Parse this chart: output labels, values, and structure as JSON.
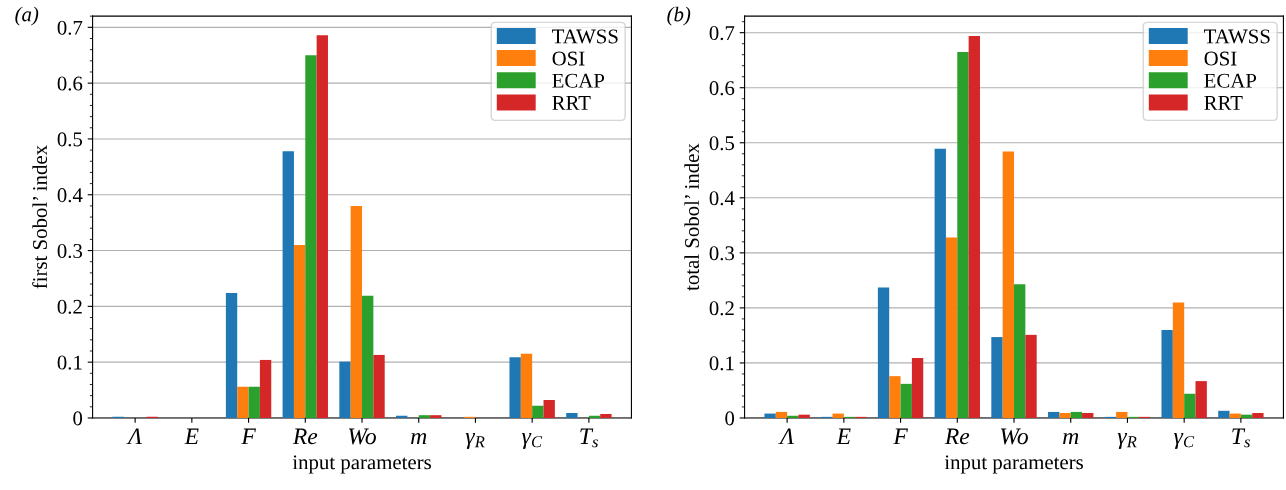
{
  "chart_data": [
    {
      "type": "bar",
      "title": "(a)",
      "xlabel": "input parameters",
      "ylabel": "first Sobol’ index",
      "categories": [
        "Λ",
        "E",
        "F",
        "Re",
        "Wo",
        "m",
        "γ$_{R}$",
        "γ$_{C}$",
        "T$_{s}$"
      ],
      "series": [
        {
          "name": "TAWSS",
          "color": "#1f77b4",
          "values": [
            0.002,
            0,
            0.224,
            0.478,
            0.101,
            0.004,
            0,
            0.109,
            0.009
          ]
        },
        {
          "name": "OSI",
          "color": "#ff7f0e",
          "values": [
            0,
            0,
            0.056,
            0.31,
            0.38,
            0,
            0.002,
            0.115,
            0
          ]
        },
        {
          "name": "ECAP",
          "color": "#2ca02c",
          "values": [
            0,
            0,
            0.056,
            0.65,
            0.219,
            0.005,
            0,
            0.022,
            0.004
          ]
        },
        {
          "name": "RRT",
          "color": "#d62728",
          "values": [
            0.002,
            0,
            0.104,
            0.686,
            0.113,
            0.005,
            0,
            0.032,
            0.007
          ]
        }
      ],
      "ylim": [
        0,
        0.72
      ],
      "yticks": [
        0,
        0.1,
        0.2,
        0.3,
        0.4,
        0.5,
        0.6,
        0.7
      ],
      "grid": "y",
      "legend": "top right"
    },
    {
      "type": "bar",
      "title": "(b)",
      "xlabel": "input parameters",
      "ylabel": "total Sobol’ index",
      "categories": [
        "Λ",
        "E",
        "F",
        "Re",
        "Wo",
        "m",
        "γ$_{R}$",
        "γ$_{C}$",
        "T$_{s}$"
      ],
      "series": [
        {
          "name": "TAWSS",
          "color": "#1f77b4",
          "values": [
            0.008,
            0.002,
            0.237,
            0.489,
            0.147,
            0.011,
            0.002,
            0.16,
            0.013
          ]
        },
        {
          "name": "OSI",
          "color": "#ff7f0e",
          "values": [
            0.011,
            0.008,
            0.076,
            0.328,
            0.484,
            0.009,
            0.011,
            0.21,
            0.008
          ]
        },
        {
          "name": "ECAP",
          "color": "#2ca02c",
          "values": [
            0.004,
            0.002,
            0.062,
            0.665,
            0.243,
            0.011,
            0.002,
            0.044,
            0.006
          ]
        },
        {
          "name": "RRT",
          "color": "#d62728",
          "values": [
            0.006,
            0.002,
            0.109,
            0.694,
            0.151,
            0.009,
            0.002,
            0.067,
            0.009
          ]
        }
      ],
      "ylim": [
        0,
        0.73
      ],
      "yticks": [
        0,
        0.1,
        0.2,
        0.3,
        0.4,
        0.5,
        0.6,
        0.7
      ],
      "grid": "y",
      "legend": "top right"
    }
  ]
}
